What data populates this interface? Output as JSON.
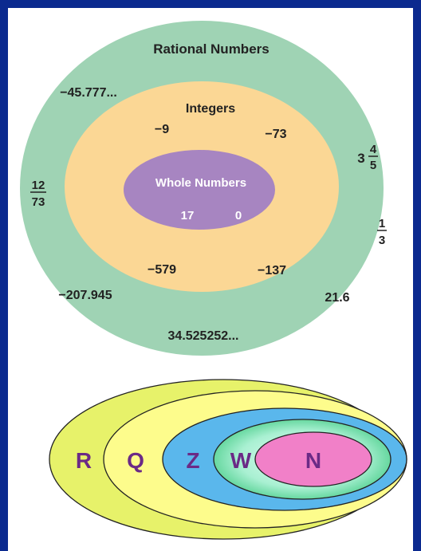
{
  "top_diagram": {
    "title": "Rational Numbers",
    "integers_label": "Integers",
    "whole_label": "Whole Numbers",
    "whole_values": [
      "17",
      "0"
    ],
    "integer_values": [
      "−9",
      "−73",
      "−579",
      "−137"
    ],
    "rational_values": [
      "−45.777...",
      "−207.945",
      "21.6",
      "34.525252..."
    ],
    "fraction_12_73": {
      "numerator": "12",
      "denominator": "73"
    },
    "mixed_3_4_5": {
      "whole": "3",
      "numerator": "4",
      "denominator": "5"
    },
    "fraction_1_3": {
      "numerator": "1",
      "denominator": "3"
    },
    "colors": {
      "rational": "#9fd3b4",
      "integers": "#fbd795",
      "whole": "#a785c1",
      "background": "#0b2a8f"
    }
  },
  "bottom_diagram": {
    "labels": [
      "R",
      "Q",
      "Z",
      "W",
      "N"
    ],
    "colors": {
      "R": "#e7f26a",
      "Q": "#fdfc8c",
      "Z": "#5ab7ec",
      "W_outer": "#6ad7a0",
      "W_inner": "#d9fbf1",
      "N": "#f180c8",
      "label": "#6b2a86"
    }
  }
}
